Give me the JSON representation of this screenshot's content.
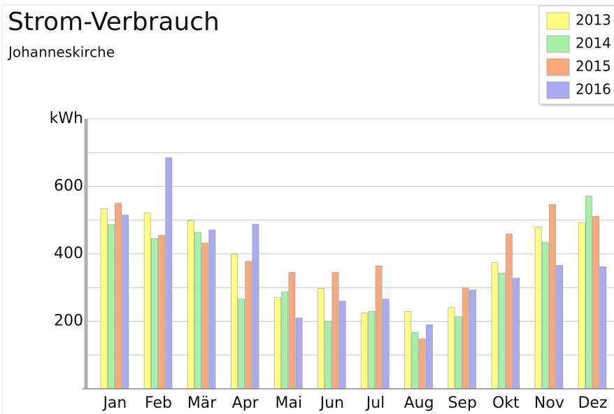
{
  "chart_data": {
    "type": "bar",
    "title": "Strom-Verbrauch",
    "subtitle": "Johanneskirche",
    "categories": [
      "Jan",
      "Feb",
      "Mär",
      "Apr",
      "Mai",
      "Jun",
      "Jul",
      "Aug",
      "Sep",
      "Okt",
      "Nov",
      "Dez"
    ],
    "series": [
      {
        "name": "2013",
        "color": "#ffff80",
        "values": [
          534,
          521,
          498,
          399,
          270,
          297,
          225,
          229,
          241,
          374,
          480,
          492
        ]
      },
      {
        "name": "2014",
        "color": "#a4f0a4",
        "values": [
          486,
          445,
          463,
          266,
          287,
          200,
          229,
          167,
          214,
          343,
          434,
          571
        ]
      },
      {
        "name": "2015",
        "color": "#f8aa7c",
        "values": [
          550,
          455,
          432,
          378,
          345,
          345,
          364,
          148,
          299,
          459,
          546,
          511
        ]
      },
      {
        "name": "2016",
        "color": "#aaaaf2",
        "values": [
          515,
          685,
          471,
          488,
          210,
          260,
          266,
          190,
          293,
          328,
          366,
          362
        ]
      }
    ],
    "ylim": [
      0,
      800
    ],
    "yticks": [
      200,
      400,
      600,
      {
        "value": 800,
        "label": "kWh"
      }
    ],
    "minor_yticks": [
      100,
      300,
      500,
      700
    ],
    "grid": true,
    "legend": "top-right"
  }
}
